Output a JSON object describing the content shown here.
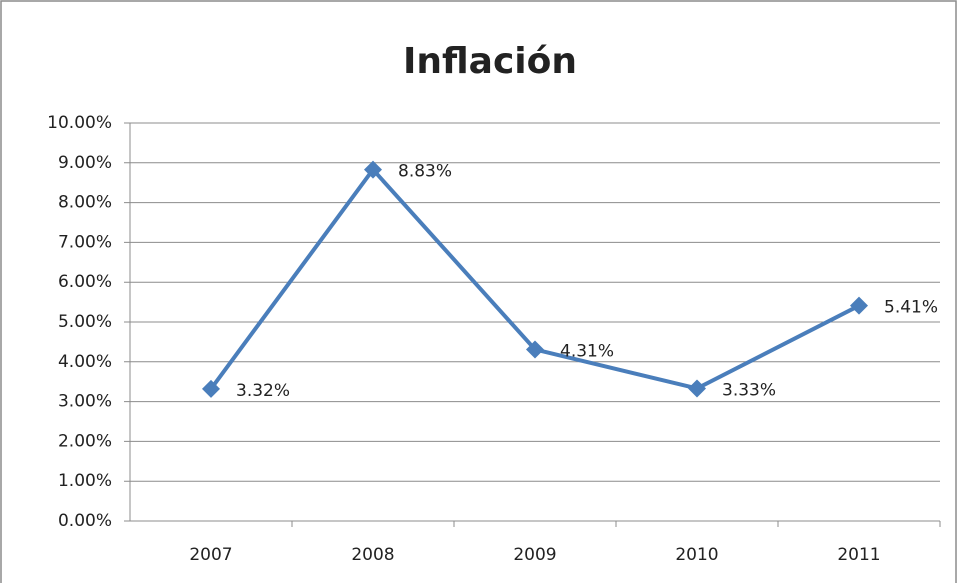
{
  "chart_data": {
    "type": "line",
    "title": "Inflación",
    "categories": [
      "2007",
      "2008",
      "2009",
      "2010",
      "2011"
    ],
    "series": [
      {
        "color": "#4a7ebb",
        "values": [
          3.32,
          8.83,
          4.31,
          3.33,
          5.41
        ],
        "value_labels": [
          "3.32%",
          "8.83%",
          "4.31%",
          "3.33%",
          "5.41%"
        ]
      }
    ],
    "ylim": [
      0,
      10
    ],
    "yticks": [
      {
        "value": 0,
        "label": "0.00%"
      },
      {
        "value": 1,
        "label": "1.00%"
      },
      {
        "value": 2,
        "label": "2.00%"
      },
      {
        "value": 3,
        "label": "3.00%"
      },
      {
        "value": 4,
        "label": "4.00%"
      },
      {
        "value": 5,
        "label": "5.00%"
      },
      {
        "value": 6,
        "label": "6.00%"
      },
      {
        "value": 7,
        "label": "7.00%"
      },
      {
        "value": 8,
        "label": "8.00%"
      },
      {
        "value": 9,
        "label": "9.00%"
      },
      {
        "value": 10,
        "label": "10.00%"
      }
    ],
    "grid": true
  }
}
